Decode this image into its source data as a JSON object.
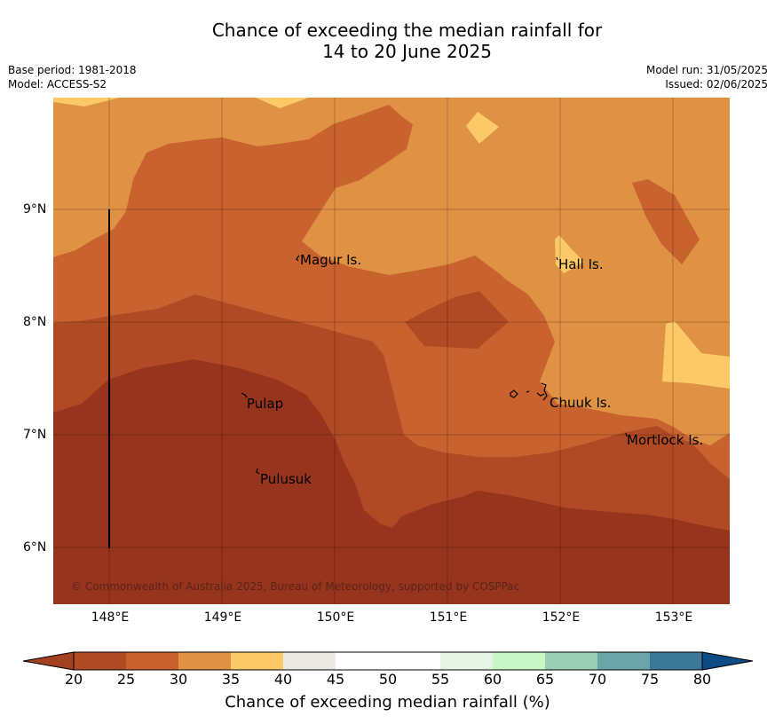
{
  "title_line1": "Chance of exceeding the median rainfall for",
  "title_line2": "14 to 20 June 2025",
  "base_period": "Base period: 1981-2018",
  "model": "Model: ACCESS-S2",
  "model_run": "Model run: 31/05/2025",
  "issued": "Issued: 02/06/2025",
  "copyright": "© Commonwealth of Australia 2025, Bureau of Meteorology, supported by COSPPac",
  "places": {
    "magur": "Magur Is.",
    "hall": "Hall Is.",
    "pulap": "Pulap",
    "chuuk": "Chuuk Is.",
    "mortlock": "Mortlock Is.",
    "pulusuk": "Pulusuk"
  },
  "lat_ticks": [
    "9°N",
    "8°N",
    "7°N",
    "6°N"
  ],
  "lon_ticks": [
    "148°E",
    "149°E",
    "150°E",
    "151°E",
    "152°E",
    "153°E"
  ],
  "colorbar": {
    "title": "Chance of exceeding median rainfall (%)",
    "ticks": [
      "20",
      "25",
      "30",
      "35",
      "40",
      "45",
      "50",
      "55",
      "60",
      "65",
      "70",
      "75",
      "80"
    ],
    "colors": [
      "#a3401f",
      "#b04a24",
      "#c8622f",
      "#df9144",
      "#fdc967",
      "#ece8e3",
      "#ffffff",
      "#ffffff",
      "#e6f4e6",
      "#c7f7c7",
      "#9cceb5",
      "#6aa5a8",
      "#3c7898",
      "#0e4a84"
    ]
  }
}
